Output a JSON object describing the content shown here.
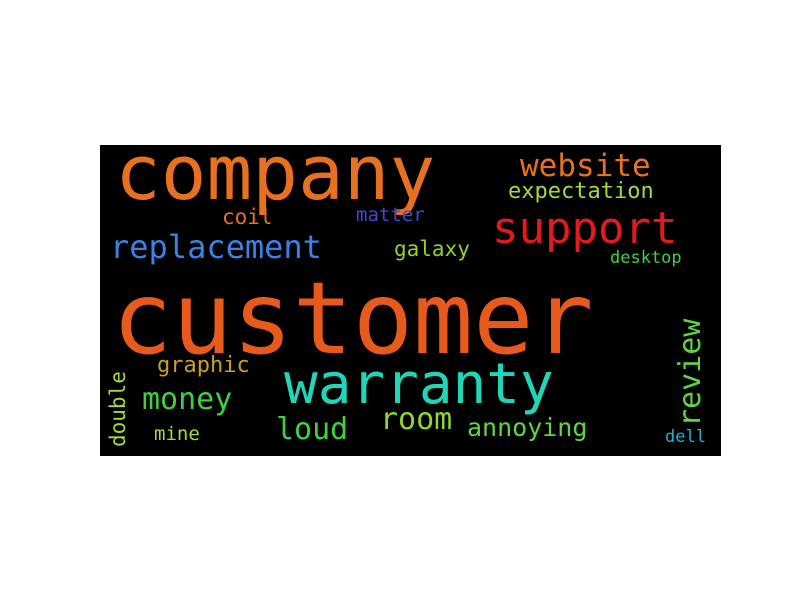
{
  "words": [
    {
      "text": "customer",
      "color": "#e85a1c"
    },
    {
      "text": "company",
      "color": "#e8711f"
    },
    {
      "text": "warranty",
      "color": "#1fd6b8"
    },
    {
      "text": "support",
      "color": "#e31a1c"
    },
    {
      "text": "replacement",
      "color": "#3b82e6"
    },
    {
      "text": "website",
      "color": "#e8711f"
    },
    {
      "text": "money",
      "color": "#3fd13f"
    },
    {
      "text": "loud",
      "color": "#3fd13f"
    },
    {
      "text": "room",
      "color": "#8fd62a"
    },
    {
      "text": "annoying",
      "color": "#5fd641"
    },
    {
      "text": "expectation",
      "color": "#a6d93a"
    },
    {
      "text": "graphic",
      "color": "#c9a020"
    },
    {
      "text": "galaxy",
      "color": "#8fd62a"
    },
    {
      "text": "coil",
      "color": "#e8711f"
    },
    {
      "text": "matter",
      "color": "#3a4be0"
    },
    {
      "text": "mine",
      "color": "#a6d93a"
    },
    {
      "text": "desktop",
      "color": "#3fd13f"
    },
    {
      "text": "dell",
      "color": "#1fb3d6"
    },
    {
      "text": "review",
      "color": "#5fd641"
    },
    {
      "text": "double",
      "color": "#a6d93a"
    }
  ]
}
